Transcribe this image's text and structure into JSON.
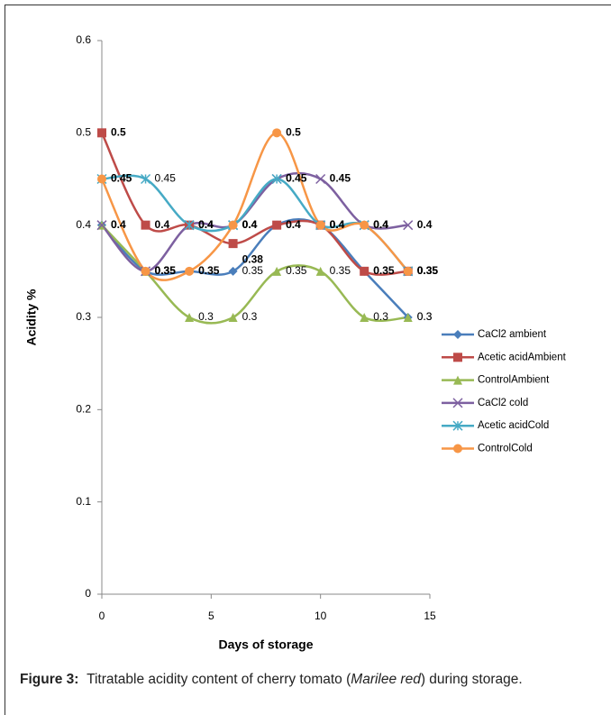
{
  "chart_data": {
    "type": "line",
    "y_label": "Acidity %",
    "x_label": "Days of storage",
    "x": [
      0,
      2,
      4,
      6,
      8,
      10,
      12,
      14
    ],
    "xlim": [
      0,
      15
    ],
    "xticks": [
      0,
      5,
      10,
      15
    ],
    "ylim": [
      0,
      0.6
    ],
    "yticks": [
      0,
      0.1,
      0.2,
      0.3,
      0.4,
      0.5,
      0.6
    ],
    "smooth": true,
    "legend": "right",
    "series": [
      {
        "name": "CaCl2 ambient",
        "color": "#4a7ebb",
        "marker": "diamond",
        "values": [
          0.4,
          0.35,
          0.35,
          0.35,
          0.4,
          0.4,
          0.35,
          0.3
        ]
      },
      {
        "name": "Acetic acidAmbient",
        "color": "#be4b48",
        "marker": "square",
        "values": [
          0.5,
          0.4,
          0.4,
          0.38,
          0.4,
          0.4,
          0.35,
          0.35
        ]
      },
      {
        "name": "ControlAmbient",
        "color": "#98b954",
        "marker": "triangle",
        "values": [
          0.4,
          0.35,
          0.3,
          0.3,
          0.35,
          0.35,
          0.3,
          0.3
        ]
      },
      {
        "name": "CaCl2 cold",
        "color": "#7d60a0",
        "marker": "x",
        "values": [
          0.4,
          0.35,
          0.4,
          0.4,
          0.45,
          0.45,
          0.4,
          0.4
        ]
      },
      {
        "name": "Acetic acidCold",
        "color": "#46aac5",
        "marker": "star",
        "values": [
          0.45,
          0.45,
          0.4,
          0.4,
          0.45,
          0.4,
          0.4,
          0.35
        ]
      },
      {
        "name": "ControlCold",
        "color": "#f79646",
        "marker": "circle",
        "values": [
          0.45,
          0.35,
          0.35,
          0.4,
          0.5,
          0.4,
          0.4,
          0.35
        ]
      }
    ]
  },
  "caption": {
    "label": "Figure 3:",
    "text": "Titratable acidity content of cherry tomato (",
    "italic": "Marilee red",
    "end": ") during storage."
  }
}
